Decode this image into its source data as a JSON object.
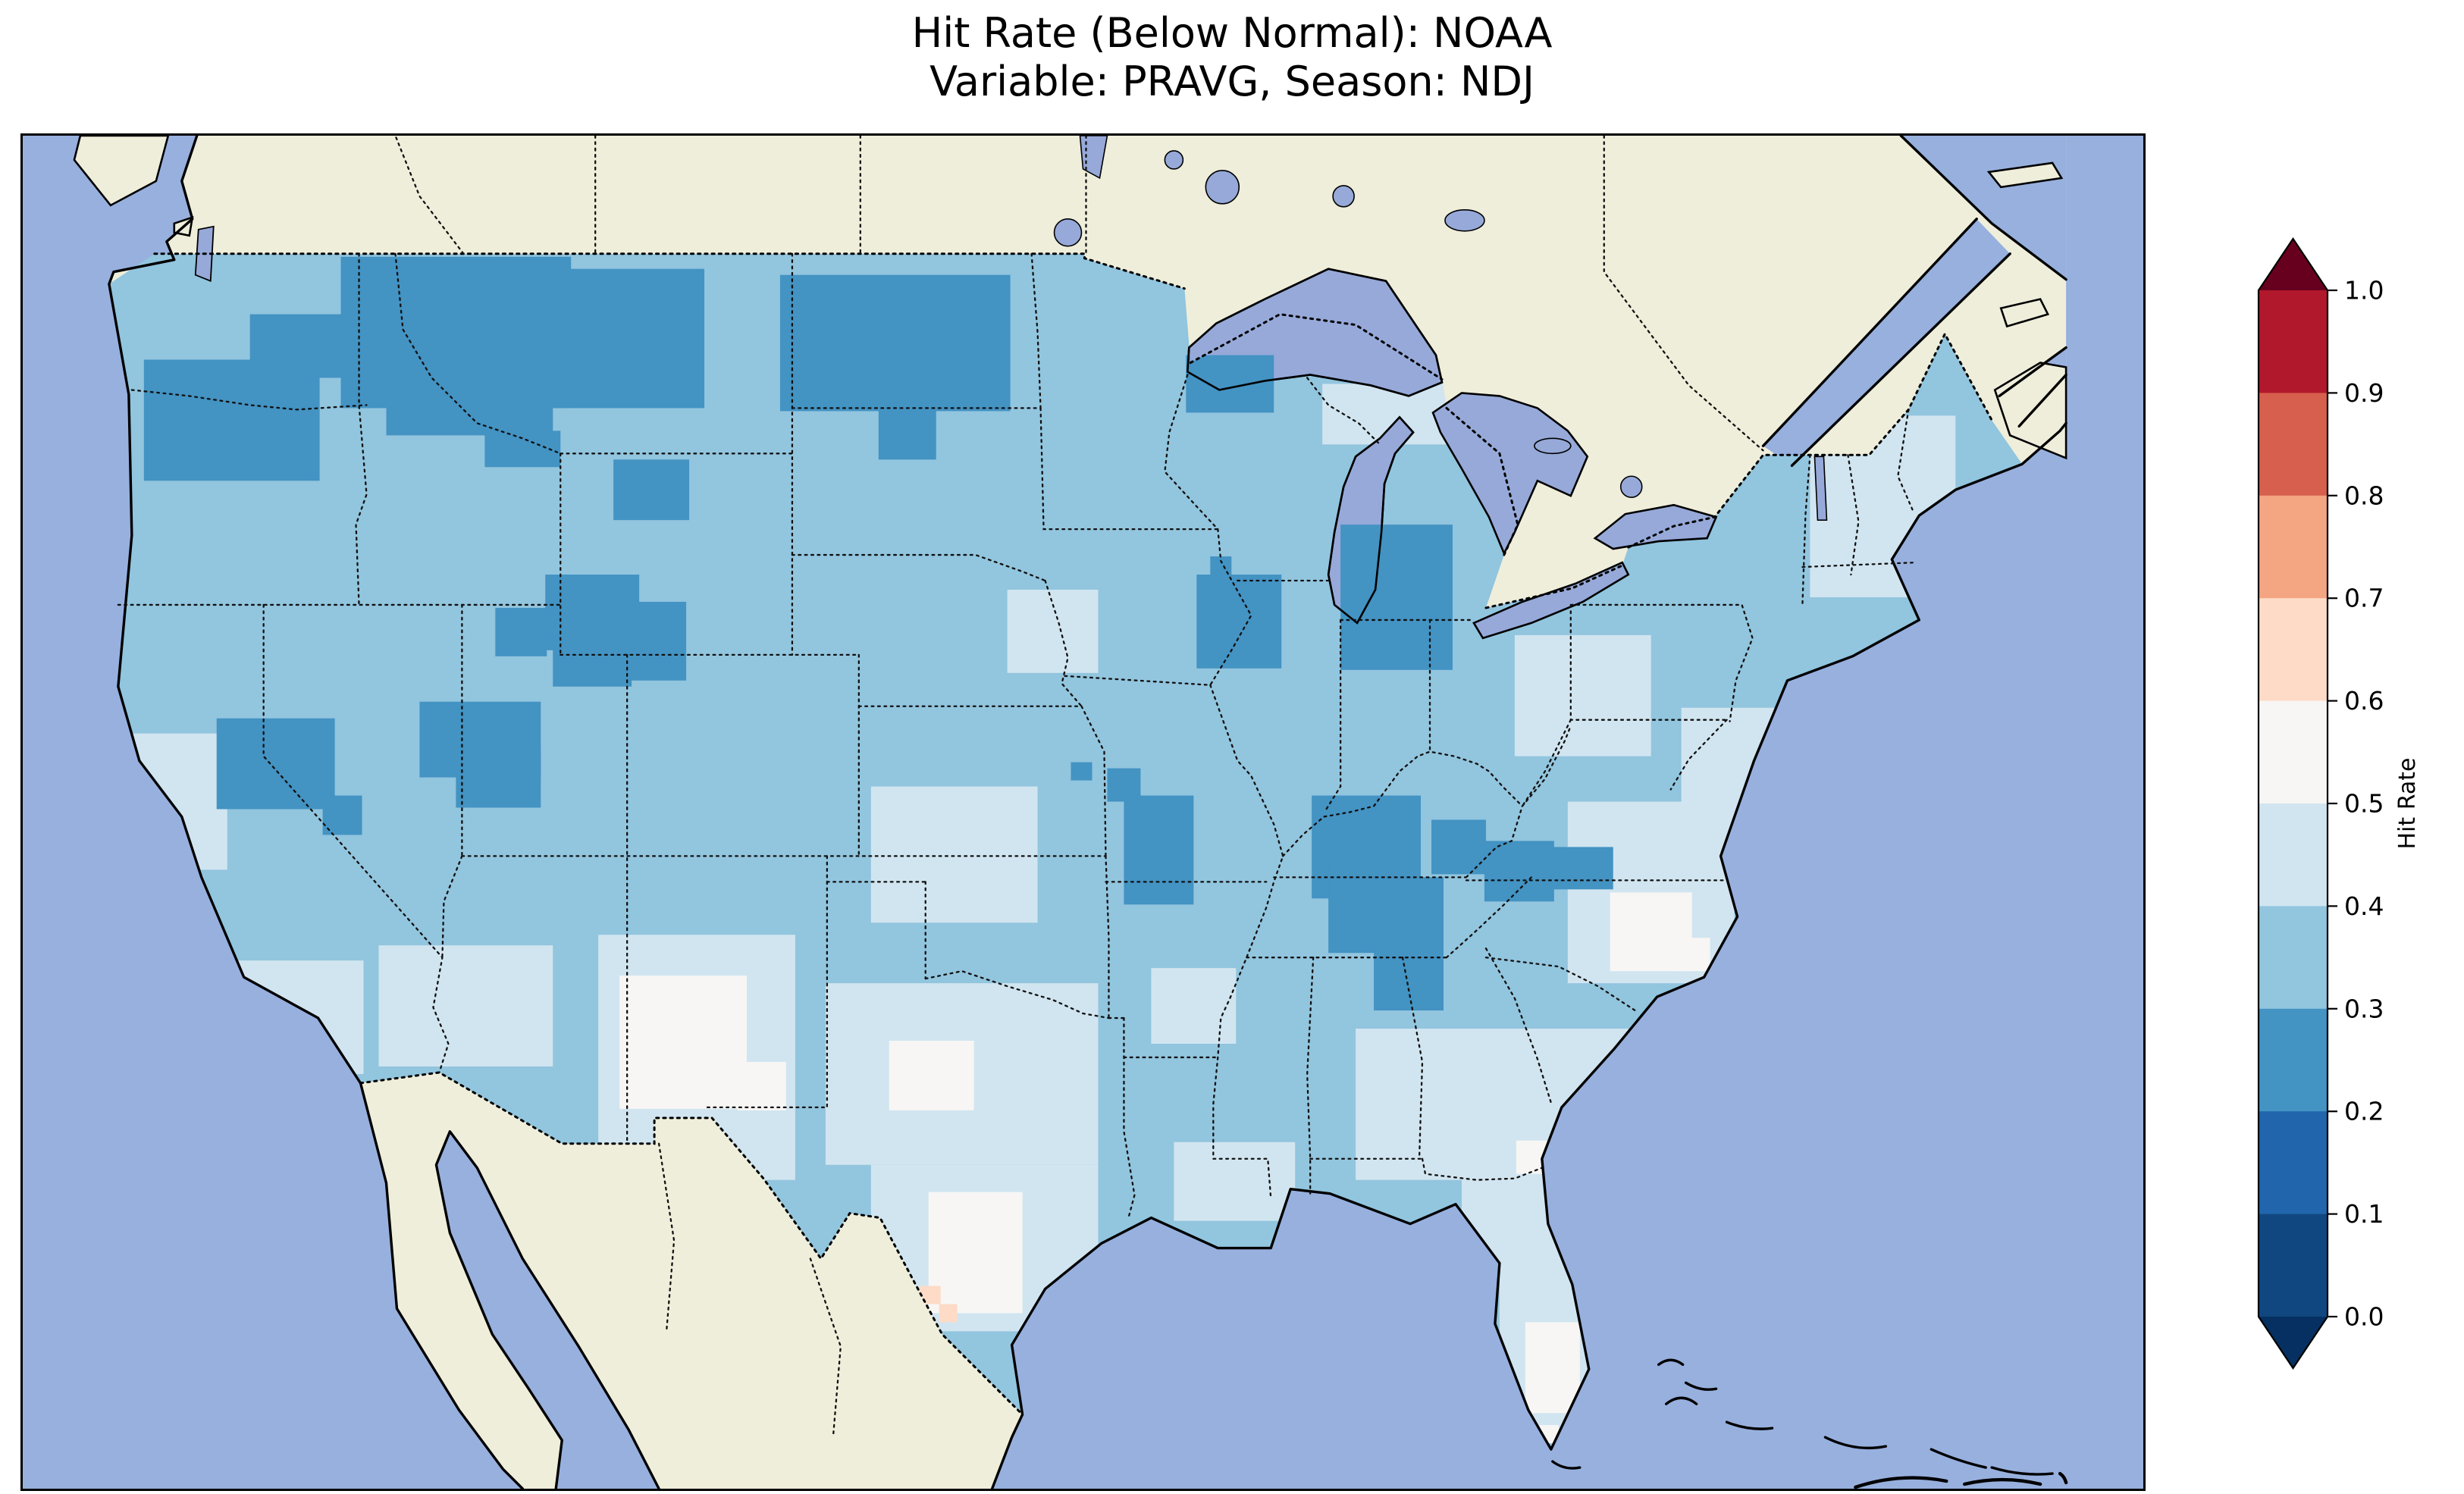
{
  "figure": {
    "title_line1": "Hit Rate (Below Normal): NOAA",
    "title_line2": "Variable: PRAVG, Season: NDJ"
  },
  "map": {
    "ocean_color": "#97b0de",
    "land_color": "#efeedb",
    "lake_color": "#96a9d9",
    "coast_color": "#000000",
    "border_color": "#111111"
  },
  "colorbar": {
    "label": "Hit Rate",
    "ticks": [
      "1.0",
      "0.9",
      "0.8",
      "0.7",
      "0.6",
      "0.5",
      "0.4",
      "0.3",
      "0.2",
      "0.1",
      "0.0"
    ],
    "segments_top_to_bottom": [
      "#b2182b",
      "#d6604d",
      "#f4a582",
      "#fddbc7",
      "#f7f6f4",
      "#d1e5f0",
      "#92c5de",
      "#4393c3",
      "#2166ac",
      "#114781"
    ],
    "over_color": "#67001f",
    "under_color": "#053061"
  },
  "chart_data": {
    "type": "heatmap",
    "title": "Hit Rate (Below Normal): NOAA",
    "subtitle": "Variable: PRAVG, Season: NDJ",
    "metric": "Hit Rate (Below Normal)",
    "dataset": "NOAA",
    "variable": "PRAVG",
    "season": "NDJ",
    "colorbar_label": "Hit Rate",
    "value_range": [
      0.0,
      1.0
    ],
    "tick_values": [
      0.0,
      0.1,
      0.2,
      0.3,
      0.4,
      0.5,
      0.6,
      0.7,
      0.8,
      0.9,
      1.0
    ],
    "legend_position": "right",
    "palette": {
      "b2": {
        "range": [
          0.2,
          0.3
        ],
        "color": "#4393c3"
      },
      "b3": {
        "range": [
          0.3,
          0.4
        ],
        "color": "#92c5de"
      },
      "b4": {
        "range": [
          0.4,
          0.5
        ],
        "color": "#d1e5f0"
      },
      "b5": {
        "range": [
          0.5,
          0.6
        ],
        "color": "#f7f6f4"
      },
      "b6": {
        "range": [
          0.6,
          0.7
        ],
        "color": "#fddbc7"
      }
    },
    "base_band": "b3",
    "patches_pre": [
      [
        65,
        395,
        70,
        90,
        "b4"
      ],
      [
        140,
        545,
        85,
        75,
        "b4"
      ],
      [
        235,
        535,
        115,
        80,
        "b4"
      ],
      [
        380,
        528,
        130,
        162,
        "b4"
      ],
      [
        560,
        430,
        110,
        90,
        "b4"
      ],
      [
        530,
        560,
        180,
        120,
        "b4"
      ],
      [
        560,
        680,
        150,
        110,
        "b4"
      ],
      [
        650,
        300,
        60,
        55,
        "b4"
      ],
      [
        858,
        164,
        84,
        40,
        "b4"
      ],
      [
        985,
        330,
        90,
        80,
        "b4"
      ],
      [
        1180,
        185,
        96,
        120,
        "b4"
      ],
      [
        1095,
        378,
        62,
        78,
        "b4"
      ],
      [
        1020,
        440,
        110,
        120,
        "b4"
      ],
      [
        880,
        590,
        180,
        100,
        "b4"
      ],
      [
        950,
        688,
        112,
        58,
        "b4"
      ],
      [
        975,
        745,
        58,
        115,
        "b4"
      ],
      [
        760,
        665,
        80,
        52,
        "b4"
      ],
      [
        745,
        550,
        56,
        50,
        "b4"
      ],
      [
        394,
        555,
        84,
        88,
        "b5"
      ],
      [
        472,
        612,
        32,
        32,
        "b5"
      ],
      [
        572,
        598,
        56,
        46,
        "b5"
      ],
      [
        598,
        698,
        62,
        80,
        "b5"
      ],
      [
        1048,
        500,
        54,
        52,
        "b5"
      ],
      [
        1092,
        530,
        22,
        22,
        "b5"
      ],
      [
        986,
        664,
        24,
        22,
        "b5"
      ],
      [
        992,
        784,
        36,
        60,
        "b5"
      ],
      [
        1000,
        852,
        14,
        12,
        "b5"
      ],
      [
        985,
        840,
        12,
        12,
        "b5"
      ],
      [
        592,
        760,
        14,
        12,
        "b6"
      ],
      [
        605,
        772,
        12,
        12,
        "b6"
      ],
      [
        80,
        148,
        116,
        80,
        "b2"
      ],
      [
        150,
        118,
        82,
        42,
        "b2"
      ],
      [
        210,
        80,
        152,
        100,
        "b2"
      ],
      [
        300,
        88,
        150,
        92,
        "b2"
      ],
      [
        240,
        168,
        110,
        30,
        "b2"
      ],
      [
        305,
        195,
        50,
        24,
        "b2"
      ],
      [
        390,
        214,
        50,
        40,
        "b2"
      ],
      [
        500,
        92,
        152,
        90,
        "b2"
      ],
      [
        565,
        180,
        38,
        34,
        "b2"
      ],
      [
        345,
        290,
        62,
        50,
        "b2"
      ],
      [
        382,
        308,
        56,
        52,
        "b2"
      ],
      [
        312,
        312,
        34,
        32,
        "b2"
      ],
      [
        350,
        338,
        52,
        26,
        "b2"
      ],
      [
        128,
        385,
        78,
        60,
        "b2"
      ],
      [
        198,
        436,
        26,
        26,
        "b2"
      ],
      [
        262,
        374,
        80,
        50,
        "b2"
      ],
      [
        286,
        404,
        56,
        40,
        "b2"
      ],
      [
        775,
        290,
        56,
        62,
        "b2"
      ],
      [
        784,
        278,
        14,
        14,
        "b2"
      ],
      [
        716,
        418,
        22,
        22,
        "b2"
      ],
      [
        692,
        414,
        14,
        12,
        "b2"
      ],
      [
        727,
        436,
        46,
        72,
        "b2"
      ],
      [
        851,
        436,
        72,
        68,
        "b2"
      ],
      [
        862,
        478,
        60,
        62,
        "b2"
      ],
      [
        892,
        490,
        46,
        88,
        "b2"
      ],
      [
        930,
        452,
        36,
        36,
        "b2"
      ],
      [
        965,
        466,
        46,
        40,
        "b2"
      ],
      [
        1008,
        470,
        42,
        28,
        "b2"
      ]
    ],
    "patches_post": [
      [
        870,
        257,
        74,
        96,
        "b2"
      ],
      [
        768,
        145,
        58,
        38,
        "b2"
      ]
    ]
  }
}
